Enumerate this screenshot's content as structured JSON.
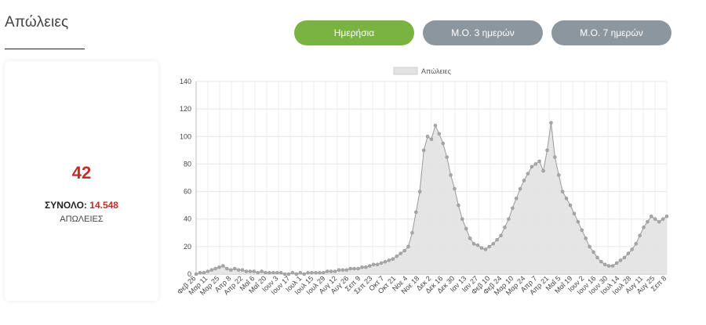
{
  "header": {
    "title": "Απώλειες"
  },
  "toggles": {
    "daily": "Ημερήσια",
    "avg3": "Μ.Ο. 3 ημερών",
    "avg7": "Μ.Ο. 7 ημερών",
    "active_color": "#7ab33f",
    "inactive_color": "#8c969e"
  },
  "summary": {
    "value": "42",
    "total_label": "ΣΥΝΟΛΟ:",
    "total_value": "14.548",
    "caption": "ΑΠΩΛΕΙΕΣ",
    "accent_color": "#c62a2a"
  },
  "chart_data": {
    "type": "area",
    "legend": "Απώλειες",
    "legend_position": "top-center",
    "grid": true,
    "ylim": [
      0,
      140
    ],
    "yticks": [
      0,
      20,
      40,
      60,
      80,
      100,
      120,
      140
    ],
    "xticks": [
      "Φεβ 26",
      "Μαρ 11",
      "Μαρ 25",
      "Απρ 8",
      "Απρ 22",
      "Μαΐ 6",
      "Μαΐ 20",
      "Ιουν 3",
      "Ιουν 17",
      "Ιουλ 1",
      "Ιουλ 15",
      "Ιουλ 29",
      "Αυγ 12",
      "Αυγ 26",
      "Σεπ 9",
      "Σεπ 23",
      "Οκτ 7",
      "Οκτ 21",
      "Νοε 4",
      "Νοε 18",
      "Δεκ 2",
      "Δεκ 16",
      "Δεκ 30",
      "Ιαν 13",
      "Ιαν 27",
      "Φεβ 10",
      "Φεβ 24",
      "Μαρ 10",
      "Μαρ 24",
      "Απρ 7",
      "Απρ 21",
      "Μαΐ 5",
      "Μαΐ 19",
      "Ιουν 2",
      "Ιουν 16",
      "Ιουν 30",
      "Ιουλ 14",
      "Ιουλ 28",
      "Αυγ 11",
      "Αυγ 25",
      "Σεπ 8"
    ],
    "series": [
      {
        "name": "Απώλειες",
        "color": "#9a9a9a",
        "fill": "#e2e2e2",
        "points_per_tick": 3,
        "values": [
          0,
          1,
          1,
          2,
          3,
          4,
          5,
          6,
          4,
          3,
          4,
          3,
          3,
          2,
          2,
          2,
          1,
          2,
          1,
          1,
          1,
          1,
          1,
          0,
          0,
          1,
          0,
          1,
          0,
          1,
          1,
          1,
          1,
          1,
          2,
          2,
          2,
          3,
          3,
          3,
          4,
          4,
          4,
          5,
          5,
          6,
          7,
          7,
          8,
          9,
          10,
          11,
          13,
          15,
          17,
          20,
          30,
          45,
          60,
          90,
          100,
          98,
          108,
          102,
          95,
          85,
          72,
          62,
          50,
          40,
          33,
          26,
          22,
          21,
          19,
          18,
          20,
          22,
          25,
          28,
          34,
          40,
          48,
          55,
          62,
          68,
          73,
          78,
          80,
          82,
          75,
          90,
          110,
          85,
          72,
          60,
          55,
          50,
          44,
          38,
          32,
          26,
          20,
          16,
          12,
          9,
          7,
          6,
          6,
          8,
          10,
          12,
          15,
          18,
          22,
          28,
          34,
          38,
          42,
          40,
          38,
          40,
          42
        ]
      }
    ]
  }
}
